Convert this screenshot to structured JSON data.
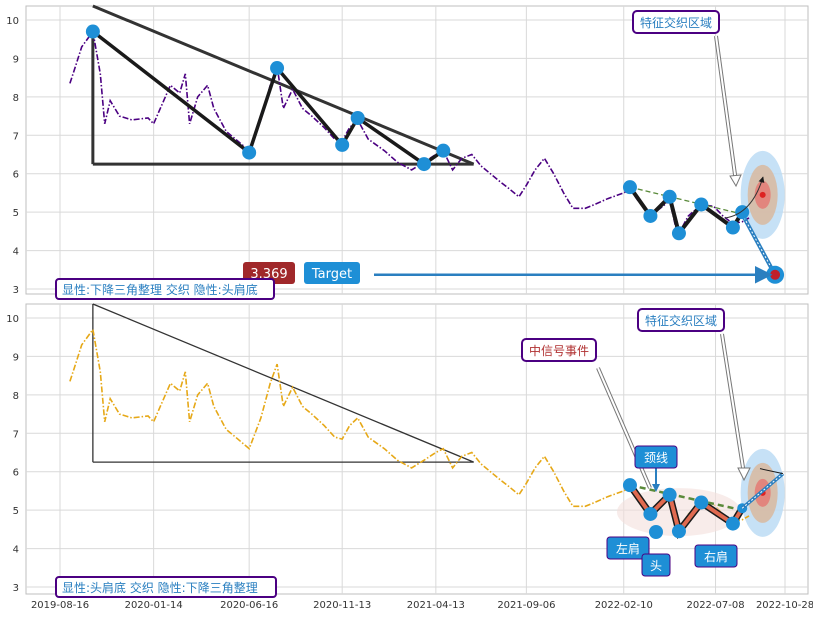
{
  "chart_data": [
    {
      "type": "line",
      "panel": "top",
      "ylim": [
        2.8,
        10.4
      ],
      "yticks": [
        3,
        4,
        5,
        6,
        7,
        8,
        9,
        10
      ],
      "series": [
        {
          "color": "#4b0082",
          "style": "dashdot",
          "points": [
            [
              "2019-09-01",
              8.35
            ],
            [
              "2019-09-08",
              8.7
            ],
            [
              "2019-09-20",
              9.3
            ],
            [
              "2019-10-08",
              9.7
            ],
            [
              "2019-10-20",
              8.6
            ],
            [
              "2019-10-27",
              7.3
            ],
            [
              "2019-11-05",
              7.9
            ],
            [
              "2019-11-20",
              7.5
            ],
            [
              "2019-12-10",
              7.4
            ],
            [
              "2020-01-05",
              7.45
            ],
            [
              "2020-01-14",
              7.3
            ],
            [
              "2020-02-10",
              8.3
            ],
            [
              "2020-02-25",
              8.1
            ],
            [
              "2020-03-05",
              8.6
            ],
            [
              "2020-03-12",
              7.3
            ],
            [
              "2020-03-25",
              8.0
            ],
            [
              "2020-04-10",
              8.3
            ],
            [
              "2020-04-20",
              7.7
            ],
            [
              "2020-05-10",
              7.1
            ],
            [
              "2020-05-25",
              6.9
            ],
            [
              "2020-06-16",
              6.6
            ],
            [
              "2020-07-05",
              7.4
            ],
            [
              "2020-07-20",
              8.3
            ],
            [
              "2020-07-31",
              8.8
            ],
            [
              "2020-08-10",
              7.7
            ],
            [
              "2020-08-25",
              8.2
            ],
            [
              "2020-09-10",
              7.7
            ],
            [
              "2020-09-25",
              7.5
            ],
            [
              "2020-10-15",
              7.2
            ],
            [
              "2020-11-01",
              6.9
            ],
            [
              "2020-11-13",
              6.85
            ],
            [
              "2020-11-25",
              7.2
            ],
            [
              "2020-12-08",
              7.4
            ],
            [
              "2020-12-25",
              6.9
            ],
            [
              "2021-01-20",
              6.6
            ],
            [
              "2021-02-10",
              6.3
            ],
            [
              "2021-03-05",
              6.1
            ],
            [
              "2021-03-25",
              6.3
            ],
            [
              "2021-04-13",
              6.5
            ],
            [
              "2021-04-25",
              6.6
            ],
            [
              "2021-05-10",
              6.1
            ],
            [
              "2021-05-25",
              6.4
            ],
            [
              "2021-06-10",
              6.5
            ],
            [
              "2021-06-25",
              6.2
            ],
            [
              "2021-07-10",
              6.0
            ],
            [
              "2021-07-25",
              5.8
            ],
            [
              "2021-08-10",
              5.6
            ],
            [
              "2021-08-25",
              5.4
            ],
            [
              "2021-09-06",
              5.7
            ],
            [
              "2021-09-20",
              6.1
            ],
            [
              "2021-10-05",
              6.4
            ],
            [
              "2021-10-20",
              6.0
            ],
            [
              "2021-11-05",
              5.5
            ],
            [
              "2021-11-20",
              5.1
            ],
            [
              "2021-12-10",
              5.1
            ],
            [
              "2021-12-25",
              5.2
            ],
            [
              "2022-01-15",
              5.35
            ],
            [
              "2022-02-10",
              5.5
            ],
            [
              "2022-02-20",
              5.6
            ],
            [
              "2022-03-05",
              5.3
            ],
            [
              "2022-03-25",
              4.9
            ],
            [
              "2022-04-10",
              5.1
            ],
            [
              "2022-04-25",
              5.3
            ],
            [
              "2022-05-05",
              4.6
            ],
            [
              "2022-05-10",
              4.45
            ],
            [
              "2022-05-25",
              4.9
            ],
            [
              "2022-06-15",
              5.2
            ],
            [
              "2022-07-05",
              5.15
            ],
            [
              "2022-07-20",
              4.9
            ],
            [
              "2022-08-05",
              4.7
            ],
            [
              "2022-08-20",
              4.75
            ],
            [
              "2022-08-31",
              4.85
            ]
          ]
        }
      ],
      "triangle": {
        "apex": [
          "2019-10-08",
          9.7
        ],
        "upper_line": [
          [
            "2019-10-08",
            11.2
          ],
          [
            "2021-06-13",
            6.25
          ]
        ],
        "base": [
          [
            "2019-10-08",
            6.25
          ],
          [
            "2021-06-13",
            6.25
          ]
        ],
        "vertical": [
          [
            "2019-10-08",
            9.7
          ],
          [
            "2019-10-08",
            6.25
          ]
        ],
        "color": "#333333"
      },
      "triangle_pivots": [
        [
          "2019-10-08",
          9.7
        ],
        [
          "2020-06-16",
          6.55
        ],
        [
          "2020-07-31",
          8.75
        ],
        [
          "2020-11-13",
          6.75
        ],
        [
          "2020-12-08",
          7.45
        ],
        [
          "2021-03-25",
          6.25
        ],
        [
          "2021-04-25",
          6.6
        ]
      ],
      "head_shoulders_pivots": [
        [
          "2022-02-20",
          5.65
        ],
        [
          "2022-03-25",
          4.9
        ],
        [
          "2022-04-25",
          5.4
        ],
        [
          "2022-05-10",
          4.45
        ],
        [
          "2022-06-15",
          5.2
        ],
        [
          "2022-08-05",
          4.6
        ],
        [
          "2022-08-20",
          5.0
        ]
      ],
      "neckline": [
        [
          "2022-02-20",
          5.65
        ],
        [
          "2022-08-20",
          4.95
        ]
      ],
      "projection": [
        [
          "2022-08-20",
          4.95
        ],
        [
          "2022-10-12",
          3.37
        ]
      ],
      "target_marker": [
        "2022-10-12",
        3.37
      ],
      "target_arrow_end": [
        "2022-10-05",
        3.37
      ],
      "target_label": "Target",
      "target_value_label": "3.369",
      "zone_label": "特征交织区域",
      "zone_center": [
        "2022-09-22",
        5.45
      ],
      "footer_label": "显性:下降三角整理 交织 隐性:头肩底"
    },
    {
      "type": "line",
      "panel": "bottom",
      "ylim": [
        2.8,
        10.4
      ],
      "yticks": [
        3,
        4,
        5,
        6,
        7,
        8,
        9,
        10
      ],
      "series": [
        {
          "color": "#e6a817",
          "style": "dashdot",
          "points": [
            [
              "2019-09-01",
              8.35
            ],
            [
              "2019-09-08",
              8.7
            ],
            [
              "2019-09-20",
              9.3
            ],
            [
              "2019-10-08",
              9.7
            ],
            [
              "2019-10-20",
              8.6
            ],
            [
              "2019-10-27",
              7.3
            ],
            [
              "2019-11-05",
              7.9
            ],
            [
              "2019-11-20",
              7.5
            ],
            [
              "2019-12-10",
              7.4
            ],
            [
              "2020-01-05",
              7.45
            ],
            [
              "2020-01-14",
              7.3
            ],
            [
              "2020-02-10",
              8.3
            ],
            [
              "2020-02-25",
              8.1
            ],
            [
              "2020-03-05",
              8.6
            ],
            [
              "2020-03-12",
              7.3
            ],
            [
              "2020-03-25",
              8.0
            ],
            [
              "2020-04-10",
              8.3
            ],
            [
              "2020-04-20",
              7.7
            ],
            [
              "2020-05-10",
              7.1
            ],
            [
              "2020-05-25",
              6.9
            ],
            [
              "2020-06-16",
              6.6
            ],
            [
              "2020-07-05",
              7.4
            ],
            [
              "2020-07-20",
              8.3
            ],
            [
              "2020-07-31",
              8.8
            ],
            [
              "2020-08-10",
              7.7
            ],
            [
              "2020-08-25",
              8.2
            ],
            [
              "2020-09-10",
              7.7
            ],
            [
              "2020-09-25",
              7.5
            ],
            [
              "2020-10-15",
              7.2
            ],
            [
              "2020-11-01",
              6.9
            ],
            [
              "2020-11-13",
              6.85
            ],
            [
              "2020-11-25",
              7.2
            ],
            [
              "2020-12-08",
              7.4
            ],
            [
              "2020-12-25",
              6.9
            ],
            [
              "2021-01-20",
              6.6
            ],
            [
              "2021-02-10",
              6.3
            ],
            [
              "2021-03-05",
              6.1
            ],
            [
              "2021-03-25",
              6.3
            ],
            [
              "2021-04-13",
              6.5
            ],
            [
              "2021-04-25",
              6.6
            ],
            [
              "2021-05-10",
              6.1
            ],
            [
              "2021-05-25",
              6.4
            ],
            [
              "2021-06-10",
              6.5
            ],
            [
              "2021-06-25",
              6.2
            ],
            [
              "2021-07-10",
              6.0
            ],
            [
              "2021-07-25",
              5.8
            ],
            [
              "2021-08-10",
              5.6
            ],
            [
              "2021-08-25",
              5.4
            ],
            [
              "2021-09-06",
              5.7
            ],
            [
              "2021-09-20",
              6.1
            ],
            [
              "2021-10-05",
              6.4
            ],
            [
              "2021-10-20",
              6.0
            ],
            [
              "2021-11-05",
              5.5
            ],
            [
              "2021-11-20",
              5.1
            ],
            [
              "2021-12-10",
              5.1
            ],
            [
              "2021-12-25",
              5.2
            ],
            [
              "2022-01-15",
              5.35
            ],
            [
              "2022-02-10",
              5.5
            ],
            [
              "2022-02-20",
              5.6
            ],
            [
              "2022-03-05",
              5.3
            ],
            [
              "2022-03-25",
              4.9
            ],
            [
              "2022-04-10",
              5.1
            ],
            [
              "2022-04-25",
              5.3
            ],
            [
              "2022-05-05",
              4.6
            ],
            [
              "2022-05-10",
              4.45
            ],
            [
              "2022-05-25",
              4.9
            ],
            [
              "2022-06-15",
              5.2
            ],
            [
              "2022-07-05",
              5.15
            ],
            [
              "2022-07-20",
              4.9
            ],
            [
              "2022-08-05",
              4.7
            ],
            [
              "2022-08-20",
              4.75
            ],
            [
              "2022-08-31",
              4.85
            ]
          ]
        }
      ],
      "triangle": {
        "upper_line": [
          [
            "2019-10-08",
            11.2
          ],
          [
            "2021-06-13",
            6.25
          ]
        ],
        "base": [
          [
            "2019-10-08",
            6.25
          ],
          [
            "2021-06-13",
            6.25
          ]
        ],
        "vertical": [
          [
            "2019-10-08",
            10.4
          ],
          [
            "2019-10-08",
            6.25
          ]
        ],
        "color": "#333333"
      },
      "head_shoulders_pivots": [
        [
          "2022-02-20",
          5.65
        ],
        [
          "2022-03-25",
          4.9
        ],
        [
          "2022-04-25",
          5.4
        ],
        [
          "2022-05-10",
          4.45
        ],
        [
          "2022-06-15",
          5.2
        ],
        [
          "2022-08-05",
          4.65
        ],
        [
          "2022-08-20",
          5.05
        ]
      ],
      "neckline": [
        [
          "2022-02-20",
          5.65
        ],
        [
          "2022-08-20",
          5.0
        ]
      ],
      "labels": {
        "neckline": "颈线",
        "left_shoulder": "左肩",
        "head": "头",
        "right_shoulder": "右肩",
        "signal": "中信号事件",
        "zone": "特征交织区域"
      },
      "zone_center": [
        "2022-09-22",
        5.45
      ],
      "footer_label": "显性:头肩底 交织 隐性:下降三角整理"
    }
  ],
  "x_ticks": [
    "2019-08-16",
    "2020-01-14",
    "2020-06-16",
    "2020-11-13",
    "2021-04-13",
    "2021-09-06",
    "2022-02-10",
    "2022-07-08",
    "2022-10-28"
  ],
  "colors": {
    "grid": "#d9d9d9",
    "border": "#bfbfbf",
    "label_border": "#4b0082",
    "label_text_blue": "#2a7fc0",
    "label_text_red": "#b03030",
    "pivot": "#1e8fd6",
    "target_box": "#1e8fd6",
    "value_box": "#a0282a"
  }
}
